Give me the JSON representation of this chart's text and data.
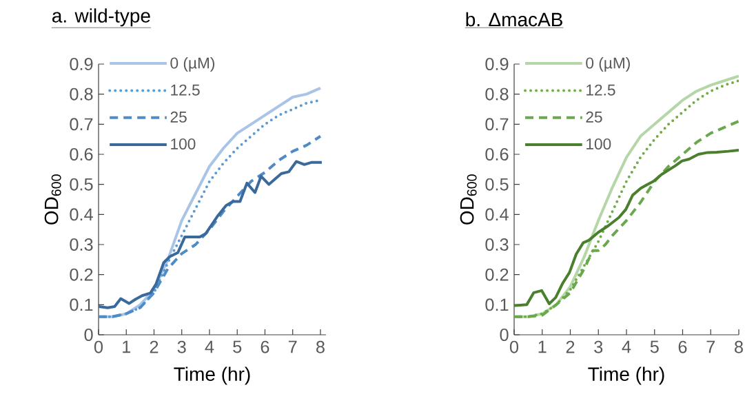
{
  "chart_data": [
    {
      "type": "line",
      "title": "a. wild-type",
      "xlabel": "Time (hr)",
      "ylabel": "OD$_{600}$",
      "xlim": [
        0,
        8.2
      ],
      "ylim": [
        0,
        0.9
      ],
      "xticks": [
        0,
        1,
        2,
        3,
        4,
        5,
        6,
        7,
        8
      ],
      "yticks": [
        0,
        0.1,
        0.2,
        0.3,
        0.4,
        0.5,
        0.6,
        0.7,
        0.8,
        0.9
      ],
      "grid": false,
      "legend": "top left",
      "series": [
        {
          "name": "0 (µM)",
          "color": "#a9c4e6",
          "line_style": "solid",
          "x": [
            0,
            0.5,
            1,
            1.5,
            2,
            2.5,
            3,
            3.5,
            4,
            4.5,
            5,
            5.5,
            6,
            6.5,
            7,
            7.5,
            8
          ],
          "values": [
            0.06,
            0.06,
            0.07,
            0.1,
            0.15,
            0.25,
            0.38,
            0.47,
            0.56,
            0.62,
            0.67,
            0.7,
            0.73,
            0.76,
            0.79,
            0.8,
            0.82
          ]
        },
        {
          "name": "12.5",
          "color": "#5b9bd5",
          "line_style": "dotted",
          "x": [
            0,
            0.5,
            1,
            1.5,
            2,
            2.5,
            3,
            3.5,
            4,
            4.5,
            5,
            5.5,
            6,
            6.5,
            7,
            7.5,
            8
          ],
          "values": [
            0.06,
            0.06,
            0.07,
            0.09,
            0.14,
            0.24,
            0.33,
            0.42,
            0.51,
            0.57,
            0.62,
            0.66,
            0.7,
            0.73,
            0.75,
            0.77,
            0.78
          ]
        },
        {
          "name": "25",
          "color": "#4f8bc6",
          "line_style": "dashed",
          "x": [
            0,
            0.5,
            1,
            1.5,
            2,
            2.5,
            3,
            3.5,
            4,
            4.5,
            5,
            5.5,
            6,
            6.5,
            7,
            7.5,
            8
          ],
          "values": [
            0.06,
            0.06,
            0.07,
            0.09,
            0.14,
            0.22,
            0.27,
            0.3,
            0.35,
            0.41,
            0.46,
            0.51,
            0.54,
            0.58,
            0.61,
            0.63,
            0.66
          ]
        },
        {
          "name": "100",
          "color": "#3a6a9c",
          "line_style": "solid",
          "x": [
            0,
            0.33,
            0.58,
            0.8,
            1.1,
            1.33,
            1.57,
            1.87,
            2.07,
            2.35,
            2.57,
            2.86,
            3.11,
            3.65,
            3.86,
            4.31,
            4.6,
            4.85,
            5.1,
            5.35,
            5.64,
            5.86,
            6.14,
            6.59,
            6.86,
            7.13,
            7.42,
            7.67,
            8.05
          ],
          "values": [
            0.094,
            0.09,
            0.094,
            0.12,
            0.104,
            0.118,
            0.13,
            0.139,
            0.168,
            0.24,
            0.26,
            0.273,
            0.325,
            0.325,
            0.336,
            0.397,
            0.43,
            0.443,
            0.443,
            0.504,
            0.473,
            0.527,
            0.5,
            0.536,
            0.542,
            0.576,
            0.566,
            0.573,
            0.573
          ]
        }
      ]
    },
    {
      "type": "line",
      "title": "b. ΔmacAB",
      "xlabel": "Time (hr)",
      "ylabel": "OD$_{600}$",
      "xlim": [
        0,
        8
      ],
      "ylim": [
        0,
        0.9
      ],
      "xticks": [
        0,
        1,
        2,
        3,
        4,
        5,
        6,
        7,
        8
      ],
      "yticks": [
        0,
        0.1,
        0.2,
        0.3,
        0.4,
        0.5,
        0.6,
        0.7,
        0.8,
        0.9
      ],
      "grid": false,
      "legend": "top left",
      "series": [
        {
          "name": "0 (µM)",
          "color": "#b5d6a7",
          "line_style": "solid",
          "x": [
            0,
            0.5,
            1,
            1.5,
            2,
            2.5,
            3,
            3.5,
            4,
            4.5,
            5,
            5.5,
            6,
            6.5,
            7,
            7.5,
            8
          ],
          "values": [
            0.06,
            0.06,
            0.07,
            0.1,
            0.16,
            0.26,
            0.38,
            0.49,
            0.59,
            0.66,
            0.7,
            0.74,
            0.78,
            0.81,
            0.83,
            0.845,
            0.86
          ]
        },
        {
          "name": "12.5",
          "color": "#70ad47",
          "line_style": "dotted",
          "x": [
            0,
            0.5,
            1,
            1.5,
            2,
            2.5,
            3,
            3.5,
            4,
            4.5,
            5,
            5.5,
            6,
            6.5,
            7,
            7.5,
            8
          ],
          "values": [
            0.06,
            0.06,
            0.07,
            0.1,
            0.15,
            0.23,
            0.31,
            0.41,
            0.51,
            0.59,
            0.65,
            0.7,
            0.74,
            0.78,
            0.81,
            0.83,
            0.845
          ]
        },
        {
          "name": "25",
          "color": "#6aa84f",
          "line_style": "dashed",
          "x": [
            0,
            0.5,
            1,
            1.5,
            2,
            2.5,
            2.8,
            3,
            3.25,
            3.5,
            4,
            4.5,
            5,
            5.5,
            6,
            6.5,
            7,
            7.5,
            8
          ],
          "values": [
            0.06,
            0.06,
            0.065,
            0.1,
            0.14,
            0.22,
            0.28,
            0.28,
            0.3,
            0.33,
            0.38,
            0.44,
            0.51,
            0.56,
            0.6,
            0.64,
            0.67,
            0.69,
            0.71
          ]
        },
        {
          "name": "100",
          "color": "#4a7f2e",
          "line_style": "solid",
          "x": [
            0,
            0.45,
            0.7,
            0.98,
            1.25,
            1.48,
            1.72,
            1.97,
            2.21,
            2.46,
            2.66,
            2.99,
            3.36,
            3.73,
            3.98,
            4.22,
            4.51,
            4.75,
            4.96,
            5.25,
            5.74,
            5.98,
            6.23,
            6.56,
            6.89,
            7.21,
            7.62,
            8
          ],
          "values": [
            0.097,
            0.1,
            0.14,
            0.147,
            0.103,
            0.124,
            0.17,
            0.207,
            0.268,
            0.306,
            0.314,
            0.34,
            0.363,
            0.39,
            0.417,
            0.464,
            0.487,
            0.5,
            0.51,
            0.533,
            0.562,
            0.578,
            0.584,
            0.6,
            0.606,
            0.607,
            0.61,
            0.614
          ]
        }
      ]
    }
  ]
}
